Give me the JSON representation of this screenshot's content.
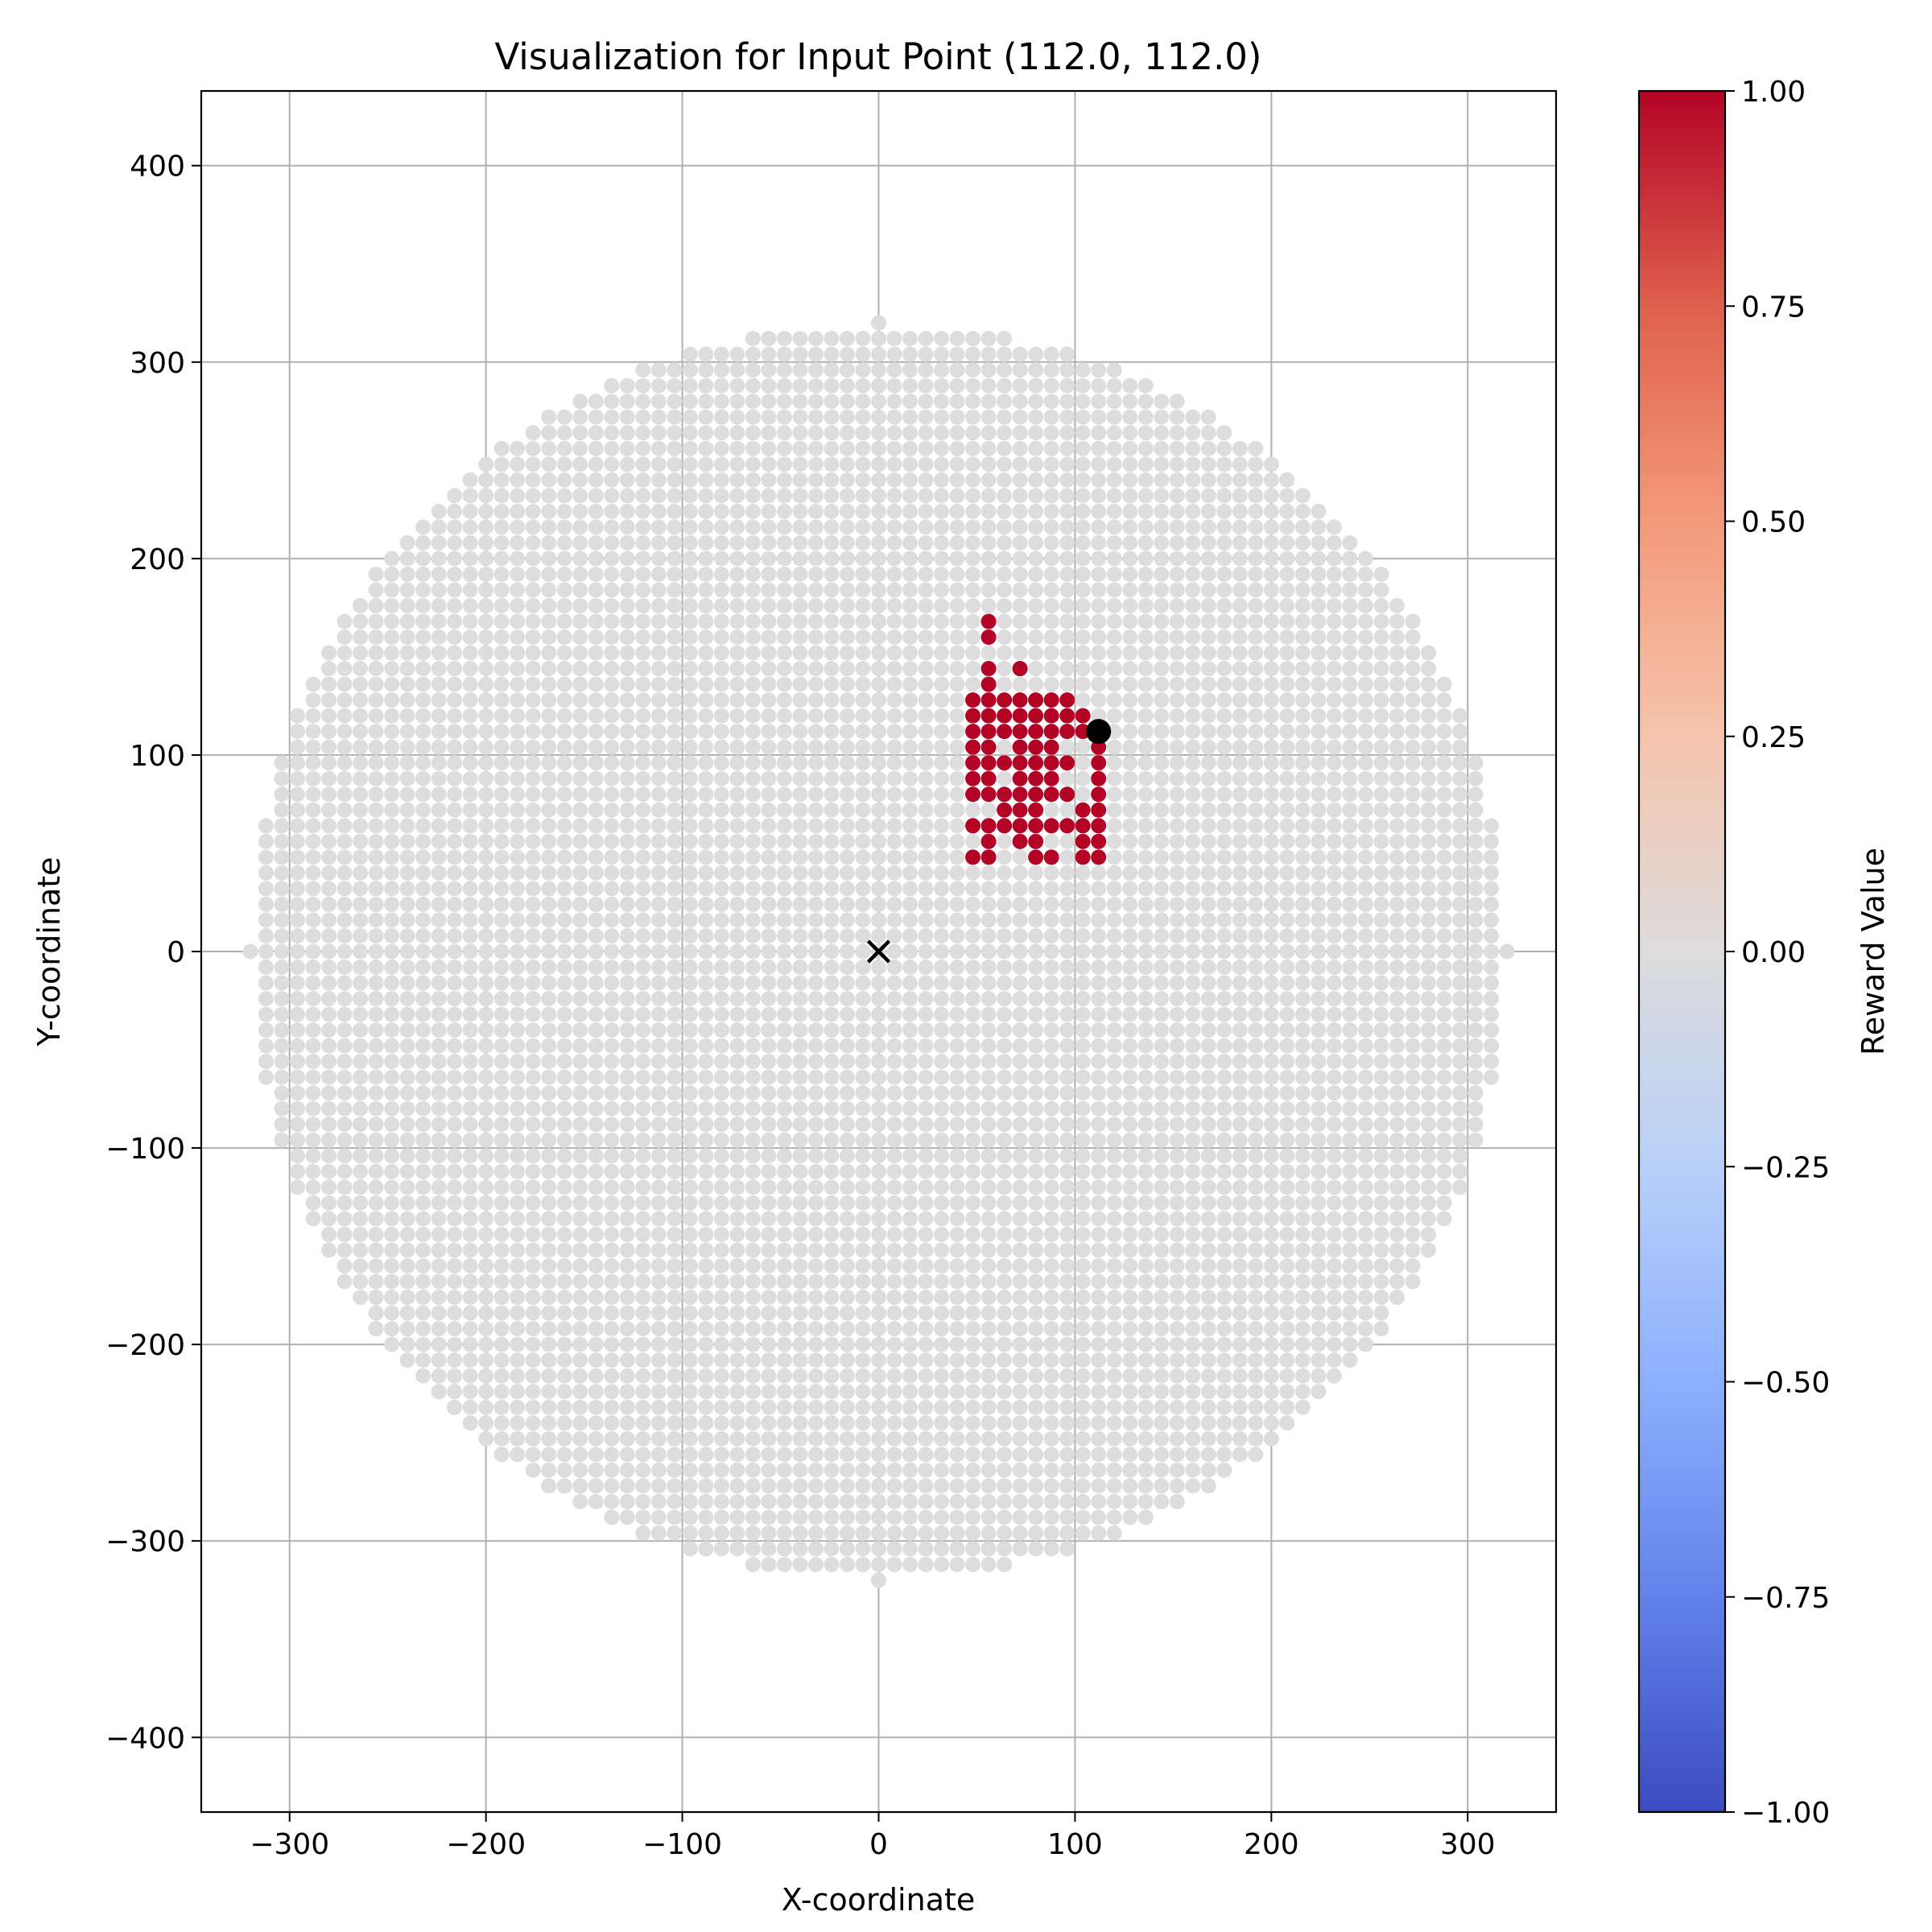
{
  "chart_data": {
    "type": "scatter",
    "title": "Visualization for Input Point (112.0, 112.0)",
    "xlabel": "X-coordinate",
    "ylabel": "Y-coordinate",
    "xlim": [
      -345,
      345
    ],
    "ylim": [
      -438,
      438
    ],
    "xticks": [
      -300,
      -200,
      -100,
      0,
      100,
      200,
      300
    ],
    "yticks": [
      -400,
      -300,
      -200,
      -100,
      0,
      100,
      200,
      300,
      400
    ],
    "xtick_labels": [
      "−300",
      "−200",
      "−100",
      "0",
      "100",
      "200",
      "300"
    ],
    "ytick_labels": [
      "−400",
      "−300",
      "−200",
      "−100",
      "0",
      "100",
      "200",
      "300",
      "400"
    ],
    "grid": true,
    "sample_grid": {
      "spacing": 8,
      "radius": 320,
      "range": [
        -320,
        320
      ],
      "value": 0.0,
      "color": "#dddddd"
    },
    "reward_points": {
      "value": 1.0,
      "color": "#b40426",
      "points": [
        [
          56,
          168
        ],
        [
          56,
          160
        ],
        [
          56,
          144
        ],
        [
          72,
          144
        ],
        [
          56,
          136
        ],
        [
          48,
          128
        ],
        [
          56,
          128
        ],
        [
          64,
          128
        ],
        [
          72,
          128
        ],
        [
          80,
          128
        ],
        [
          88,
          128
        ],
        [
          96,
          128
        ],
        [
          48,
          120
        ],
        [
          56,
          120
        ],
        [
          64,
          120
        ],
        [
          72,
          120
        ],
        [
          80,
          120
        ],
        [
          88,
          120
        ],
        [
          96,
          120
        ],
        [
          104,
          120
        ],
        [
          48,
          112
        ],
        [
          56,
          112
        ],
        [
          64,
          112
        ],
        [
          72,
          112
        ],
        [
          80,
          112
        ],
        [
          88,
          112
        ],
        [
          96,
          112
        ],
        [
          104,
          112
        ],
        [
          48,
          104
        ],
        [
          56,
          104
        ],
        [
          72,
          104
        ],
        [
          80,
          104
        ],
        [
          88,
          104
        ],
        [
          112,
          104
        ],
        [
          48,
          96
        ],
        [
          56,
          96
        ],
        [
          64,
          96
        ],
        [
          72,
          96
        ],
        [
          80,
          96
        ],
        [
          88,
          96
        ],
        [
          96,
          96
        ],
        [
          112,
          96
        ],
        [
          48,
          88
        ],
        [
          56,
          88
        ],
        [
          72,
          88
        ],
        [
          80,
          88
        ],
        [
          88,
          88
        ],
        [
          112,
          88
        ],
        [
          48,
          80
        ],
        [
          56,
          80
        ],
        [
          64,
          80
        ],
        [
          72,
          80
        ],
        [
          80,
          80
        ],
        [
          88,
          80
        ],
        [
          96,
          80
        ],
        [
          112,
          80
        ],
        [
          64,
          72
        ],
        [
          72,
          72
        ],
        [
          80,
          72
        ],
        [
          104,
          72
        ],
        [
          112,
          72
        ],
        [
          48,
          64
        ],
        [
          56,
          64
        ],
        [
          64,
          64
        ],
        [
          72,
          64
        ],
        [
          80,
          64
        ],
        [
          88,
          64
        ],
        [
          96,
          64
        ],
        [
          104,
          64
        ],
        [
          112,
          64
        ],
        [
          56,
          56
        ],
        [
          72,
          56
        ],
        [
          80,
          56
        ],
        [
          104,
          56
        ],
        [
          112,
          56
        ],
        [
          48,
          48
        ],
        [
          56,
          48
        ],
        [
          80,
          48
        ],
        [
          88,
          48
        ],
        [
          104,
          48
        ],
        [
          112,
          48
        ]
      ]
    },
    "input_point": {
      "x": 112.0,
      "y": 112.0,
      "color": "#000000"
    },
    "origin_marker": {
      "x": 0,
      "y": 0,
      "marker": "x",
      "color": "#000000"
    },
    "colorbar": {
      "label": "Reward Value",
      "range": [
        -1.0,
        1.0
      ],
      "ticks": [
        1.0,
        0.75,
        0.5,
        0.25,
        0.0,
        -0.25,
        -0.5,
        -0.75,
        -1.0
      ],
      "tick_labels": [
        "1.00",
        "0.75",
        "0.50",
        "0.25",
        "0.00",
        "−0.25",
        "−0.50",
        "−0.75",
        "−1.00"
      ],
      "colormap": "coolwarm",
      "stops": [
        "#3b4cc0",
        "#6282ea",
        "#8db0fe",
        "#b8d0f9",
        "#dddcdc",
        "#f5c4ac",
        "#f49a7b",
        "#de604d",
        "#b40426"
      ]
    }
  }
}
